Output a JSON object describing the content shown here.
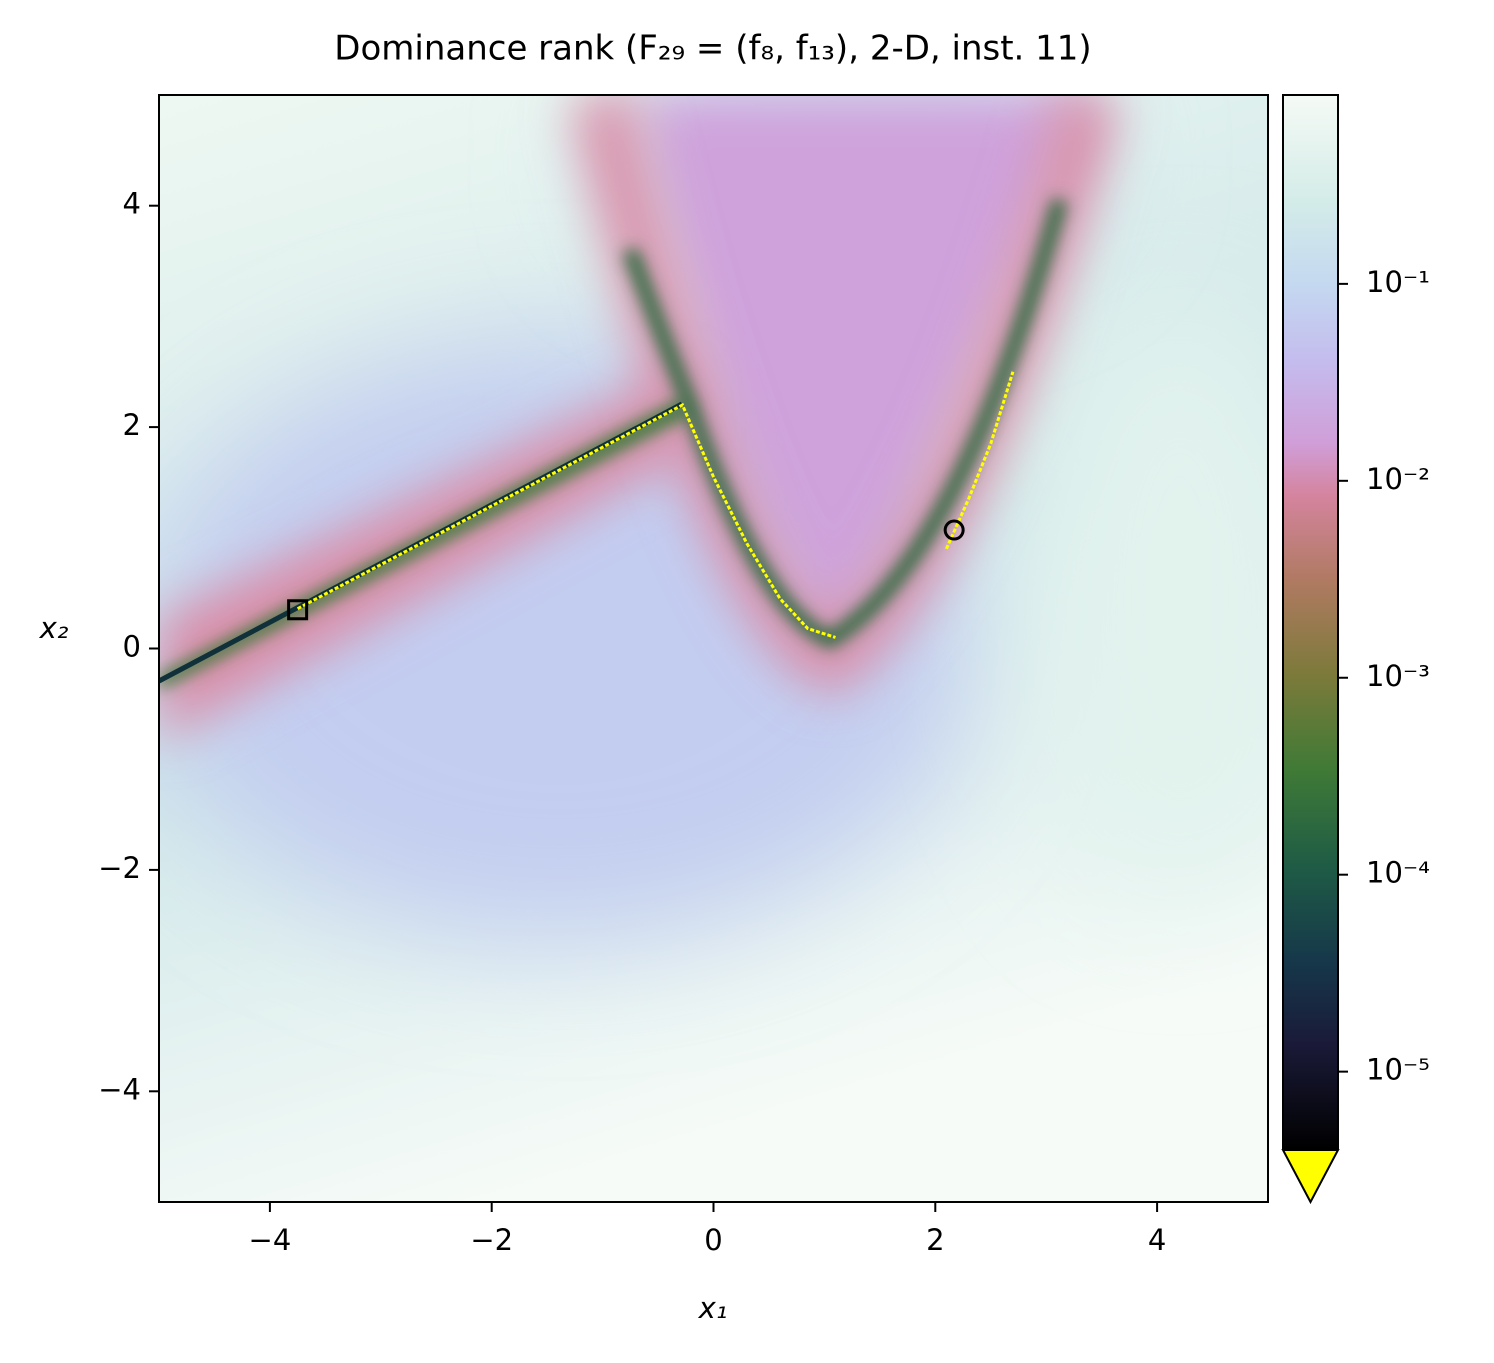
{
  "chart_data": {
    "type": "heatmap",
    "title": "Dominance rank (F₂₉ = (f₈, f₁₃), 2-D, inst. 11)",
    "xlabel": "x₁",
    "ylabel": "x₂",
    "xlim": [
      -5,
      5
    ],
    "ylim": [
      -5,
      5
    ],
    "xticks": [
      {
        "value": -4,
        "label": "−4"
      },
      {
        "value": -2,
        "label": "−2"
      },
      0,
      2,
      4
    ],
    "yticks": [
      {
        "value": -4,
        "label": "−4"
      },
      {
        "value": -2,
        "label": "−2"
      },
      0,
      2,
      4
    ],
    "series": [
      {
        "color": "#ffff00",
        "x": [
          -3.75,
          -0.28,
          -0.28,
          0,
          0.3,
          0.6,
          0.85,
          1.1,
          null,
          2.1,
          2.3,
          2.5,
          2.7
        ],
        "y": [
          0.36,
          2.2,
          2.2,
          1.55,
          0.95,
          0.45,
          0.18,
          0.1,
          null,
          0.9,
          1.35,
          1.85,
          2.5
        ]
      }
    ],
    "markers": [
      {
        "x": -3.75,
        "y": 0.35,
        "shape": "square"
      },
      {
        "x": 2.17,
        "y": 1.07,
        "shape": "circle"
      }
    ],
    "colorbar": {
      "scale": "log",
      "lim": [
        4e-06,
        0.91
      ],
      "ticks": [
        {
          "value": 0.1,
          "label": "10⁻¹"
        },
        {
          "value": 0.01,
          "label": "10⁻²"
        },
        {
          "value": 0.001,
          "label": "10⁻³"
        },
        {
          "value": 0.0001,
          "label": "10⁻⁴"
        },
        {
          "value": 1e-05,
          "label": "10⁻⁵"
        }
      ],
      "extend_color": "#ffff00"
    }
  }
}
